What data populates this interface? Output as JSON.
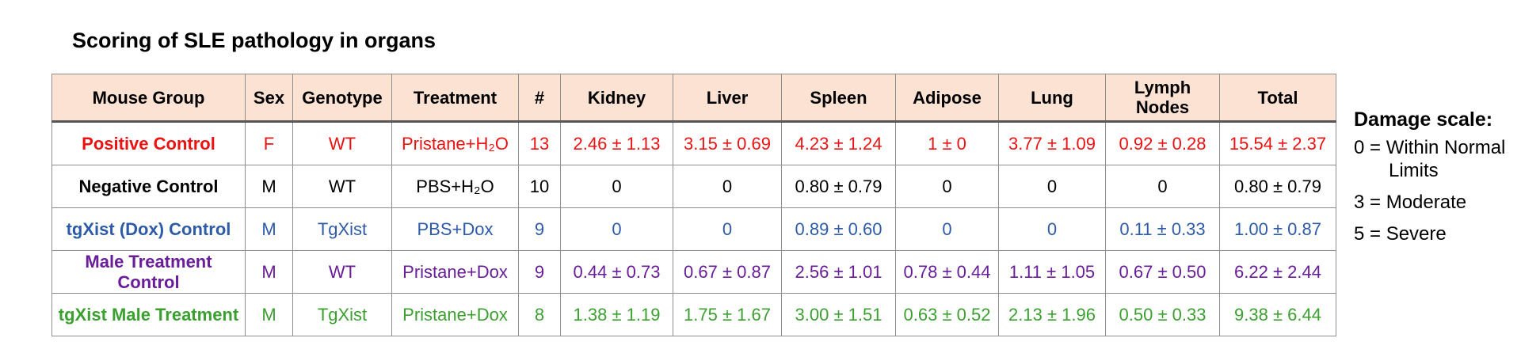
{
  "title": "Scoring of SLE pathology in organs",
  "table": {
    "headers": [
      "Mouse Group",
      "Sex",
      "Genotype",
      "Treatment",
      "#",
      "Kidney",
      "Liver",
      "Spleen",
      "Adipose",
      "Lung",
      "Lymph Nodes",
      "Total"
    ],
    "rows": [
      {
        "color": "#ee1111",
        "cells": [
          "Positive Control",
          "F",
          "WT",
          "Pristane+H₂O",
          "13",
          "2.46 ± 1.13",
          "3.15 ± 0.69",
          "4.23 ± 1.24",
          "1 ± 0",
          "3.77 ± 1.09",
          "0.92 ± 0.28",
          "15.54 ± 2.37"
        ]
      },
      {
        "color": "#000000",
        "cells": [
          "Negative Control",
          "M",
          "WT",
          "PBS+H₂O",
          "10",
          "0",
          "0",
          "0.80 ± 0.79",
          "0",
          "0",
          "0",
          "0.80 ± 0.79"
        ]
      },
      {
        "color": "#2d5ba8",
        "cells": [
          "tgXist (Dox) Control",
          "M",
          "TgXist",
          "PBS+Dox",
          "9",
          "0",
          "0",
          "0.89 ± 0.60",
          "0",
          "0",
          "0.11 ± 0.33",
          "1.00 ± 0.87"
        ]
      },
      {
        "color": "#6a1d9a",
        "cells": [
          "Male Treatment Control",
          "M",
          "WT",
          "Pristane+Dox",
          "9",
          "0.44 ± 0.73",
          "0.67 ± 0.87",
          "2.56 ± 1.01",
          "0.78 ± 0.44",
          "1.11 ± 1.05",
          "0.67 ± 0.50",
          "6.22 ± 2.44"
        ]
      },
      {
        "color": "#3aa12f",
        "cells": [
          "tgXist Male Treatment",
          "M",
          "TgXist",
          "Pristane+Dox",
          "8",
          "1.38 ± 1.19",
          "1.75 ± 1.67",
          "3.00 ± 1.51",
          "0.63 ± 0.52",
          "2.13 ± 1.96",
          "0.50 ± 0.33",
          "9.38 ± 6.44"
        ]
      }
    ]
  },
  "legend": {
    "title": "Damage scale:",
    "items": [
      {
        "line1": "0 = Within Normal",
        "line2": "Limits"
      },
      {
        "line1": "3 = Moderate",
        "line2": ""
      },
      {
        "line1": "5 = Severe",
        "line2": ""
      }
    ]
  }
}
